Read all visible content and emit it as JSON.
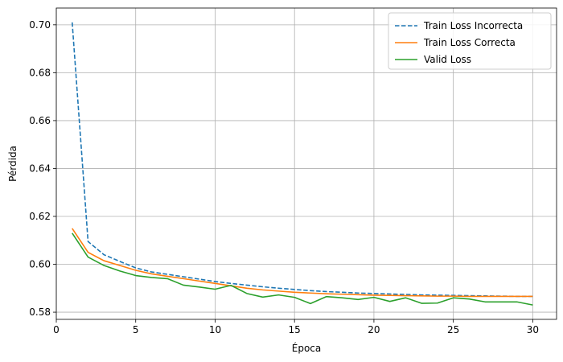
{
  "chart_data": {
    "type": "line",
    "title": "",
    "xlabel": "Época",
    "ylabel": "Pérdida",
    "xlim": [
      0,
      31.5
    ],
    "ylim": [
      0.577,
      0.707
    ],
    "xticks": [
      0,
      5,
      10,
      15,
      20,
      25,
      30
    ],
    "yticks": [
      0.58,
      0.6,
      0.62,
      0.64,
      0.66,
      0.68,
      0.7
    ],
    "grid": true,
    "legend_position": "top-right",
    "x": [
      1,
      2,
      3,
      4,
      5,
      6,
      7,
      8,
      9,
      10,
      11,
      12,
      13,
      14,
      15,
      16,
      17,
      18,
      19,
      20,
      21,
      22,
      23,
      24,
      25,
      26,
      27,
      28,
      29,
      30
    ],
    "series": [
      {
        "name": "Train Loss Incorrecta",
        "color": "#1f77b4",
        "dash": "dashed",
        "values": [
          0.701,
          0.6095,
          0.604,
          0.6012,
          0.5985,
          0.5968,
          0.5958,
          0.5948,
          0.5938,
          0.5928,
          0.592,
          0.5913,
          0.5906,
          0.59,
          0.5895,
          0.589,
          0.5886,
          0.5883,
          0.588,
          0.5878,
          0.5876,
          0.5874,
          0.5872,
          0.5871,
          0.587,
          0.5869,
          0.5868,
          0.5867,
          0.5866,
          0.5866
        ]
      },
      {
        "name": "Train Loss Correcta",
        "color": "#ff7f0e",
        "dash": "solid",
        "values": [
          0.615,
          0.605,
          0.6015,
          0.5995,
          0.5975,
          0.596,
          0.595,
          0.594,
          0.593,
          0.592,
          0.591,
          0.59,
          0.5893,
          0.5888,
          0.5883,
          0.588,
          0.5877,
          0.5875,
          0.5873,
          0.5871,
          0.587,
          0.5869,
          0.5868,
          0.5867,
          0.5867,
          0.5866,
          0.5866,
          0.5866,
          0.5866,
          0.5866
        ]
      },
      {
        "name": "Valid Loss",
        "color": "#2ca02c",
        "dash": "solid",
        "values": [
          0.613,
          0.603,
          0.5995,
          0.5972,
          0.5953,
          0.5945,
          0.594,
          0.5913,
          0.5905,
          0.5896,
          0.5912,
          0.5878,
          0.5863,
          0.5872,
          0.5862,
          0.5836,
          0.5865,
          0.586,
          0.5853,
          0.5862,
          0.5845,
          0.586,
          0.5837,
          0.5838,
          0.586,
          0.5855,
          0.5843,
          0.5843,
          0.5843,
          0.583
        ]
      }
    ]
  }
}
